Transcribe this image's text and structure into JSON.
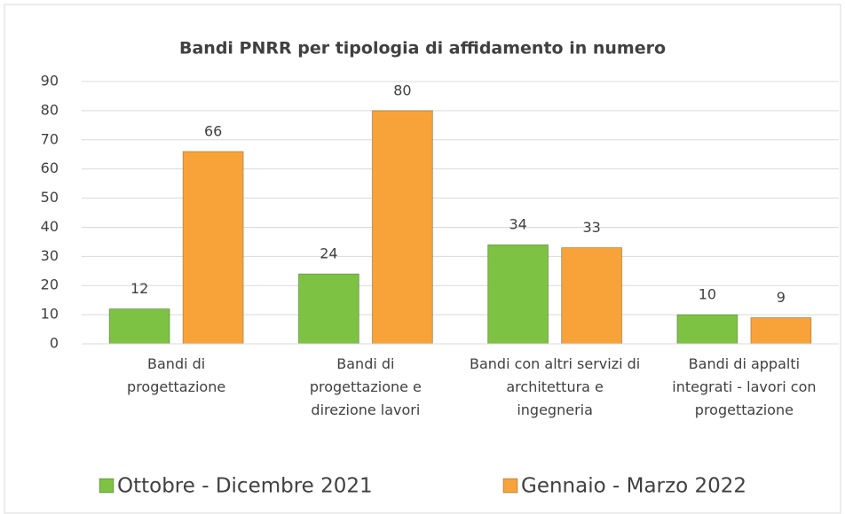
{
  "chart_data": {
    "type": "bar",
    "title": "Bandi PNRR per tipologia di affidamento in numero",
    "categories": [
      "Bandi di progettazione",
      "Bandi di progettazione e direzione lavori",
      "Bandi con altri servizi di architettura e ingegneria",
      "Bandi di appalti integrati -  lavori con progettazione"
    ],
    "series": [
      {
        "name": "Ottobre - Dicembre 2021",
        "color": "#7dc242",
        "values": [
          12,
          24,
          34,
          10
        ]
      },
      {
        "name": "Gennaio - Marzo 2022",
        "color": "#f7a33a",
        "values": [
          66,
          80,
          33,
          9
        ]
      }
    ],
    "ylim": [
      0,
      90
    ],
    "yticks": [
      0,
      10,
      20,
      30,
      40,
      50,
      60,
      70,
      80,
      90
    ],
    "grid": true,
    "legend": "bottom"
  }
}
